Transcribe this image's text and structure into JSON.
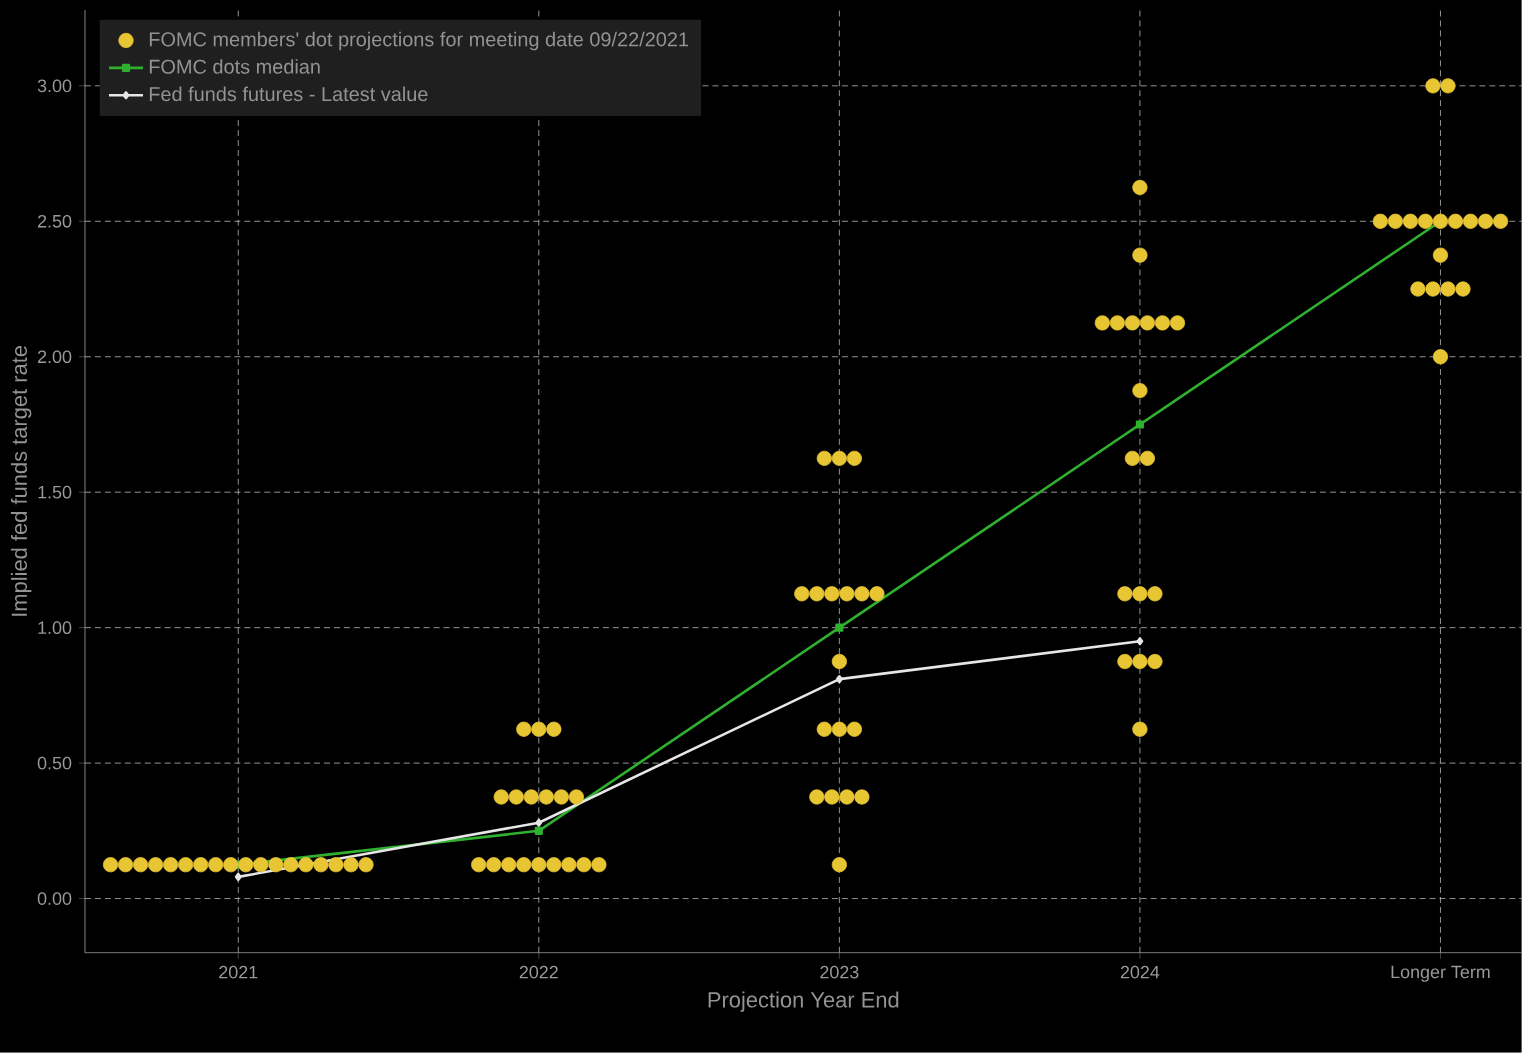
{
  "chart_data": {
    "type": "scatter",
    "xlabel": "Projection Year End",
    "ylabel": "Implied fed funds target rate",
    "xlim": [
      2020.49,
      2025.27
    ],
    "ylim": [
      -0.2,
      3.28
    ],
    "xticks": [
      2021,
      2022,
      2023,
      2024,
      {
        "value": 2025,
        "label": "Longer Term"
      }
    ],
    "yticks": [
      {
        "value": 0,
        "label": "0.00"
      },
      {
        "value": 0.5,
        "label": "0.50"
      },
      {
        "value": 1,
        "label": "1.00"
      },
      {
        "value": 1.5,
        "label": "1.50"
      },
      {
        "value": 2,
        "label": "2.00"
      },
      {
        "value": 2.5,
        "label": "2.50"
      },
      {
        "value": 3,
        "label": "3.00"
      }
    ],
    "grid": true,
    "legend": "top left",
    "series": [
      {
        "name": "FOMC members' dot projections for meeting date 09/22/2021",
        "marker": "circle",
        "color": "#e8c532",
        "x": [
          2020.575,
          2020.625,
          2020.675,
          2020.725,
          2020.775,
          2020.825,
          2020.875,
          2020.925,
          2020.975,
          2021.025,
          2021.075,
          2021.125,
          2021.175,
          2021.225,
          2021.275,
          2021.325,
          2021.375,
          2021.425,
          2021.95,
          2022,
          2022.05,
          2021.875,
          2021.925,
          2021.975,
          2022.025,
          2022.075,
          2022.125,
          2021.8,
          2021.85,
          2021.9,
          2021.95,
          2022,
          2022.05,
          2022.1,
          2022.15,
          2022.2,
          2022.95,
          2023,
          2023.05,
          2022.875,
          2022.925,
          2022.975,
          2023.025,
          2023.075,
          2023.125,
          2023,
          2022.95,
          2023,
          2023.05,
          2022.925,
          2022.975,
          2023.025,
          2023.075,
          2023,
          2024,
          2024,
          2023.875,
          2023.925,
          2023.975,
          2024.025,
          2024.075,
          2024.125,
          2024,
          2023.975,
          2024.025,
          2023.95,
          2024,
          2024.05,
          2023.95,
          2024,
          2024.05,
          2024,
          2024.975,
          2025.025,
          2024.8,
          2024.85,
          2024.9,
          2024.95,
          2025,
          2025.05,
          2025.1,
          2025.15,
          2025.2,
          2025,
          2024.925,
          2024.975,
          2025.025,
          2025.075,
          2025
        ],
        "values": [
          0.125,
          0.125,
          0.125,
          0.125,
          0.125,
          0.125,
          0.125,
          0.125,
          0.125,
          0.125,
          0.125,
          0.125,
          0.125,
          0.125,
          0.125,
          0.125,
          0.125,
          0.125,
          0.625,
          0.625,
          0.625,
          0.375,
          0.375,
          0.375,
          0.375,
          0.375,
          0.375,
          0.125,
          0.125,
          0.125,
          0.125,
          0.125,
          0.125,
          0.125,
          0.125,
          0.125,
          1.625,
          1.625,
          1.625,
          1.125,
          1.125,
          1.125,
          1.125,
          1.125,
          1.125,
          0.875,
          0.625,
          0.625,
          0.625,
          0.375,
          0.375,
          0.375,
          0.375,
          0.125,
          2.625,
          2.375,
          2.125,
          2.125,
          2.125,
          2.125,
          2.125,
          2.125,
          1.875,
          1.625,
          1.625,
          1.125,
          1.125,
          1.125,
          0.875,
          0.875,
          0.875,
          0.625,
          3,
          3,
          2.5,
          2.5,
          2.5,
          2.5,
          2.5,
          2.5,
          2.5,
          2.5,
          2.5,
          2.375,
          2.25,
          2.25,
          2.25,
          2.25,
          2
        ]
      },
      {
        "name": "FOMC dots median",
        "type": "line",
        "marker": "square",
        "color": "#2fb02f",
        "x": [
          2021,
          2022,
          2023,
          2024,
          2025
        ],
        "values": [
          0.125,
          0.25,
          1.0,
          1.75,
          2.5
        ]
      },
      {
        "name": "Fed funds futures - Latest value",
        "type": "line",
        "marker": "diamond",
        "color": "#e6e6e6",
        "x": [
          2021,
          2022,
          2023,
          2024
        ],
        "values": [
          0.08,
          0.28,
          0.81,
          0.95
        ]
      }
    ]
  }
}
